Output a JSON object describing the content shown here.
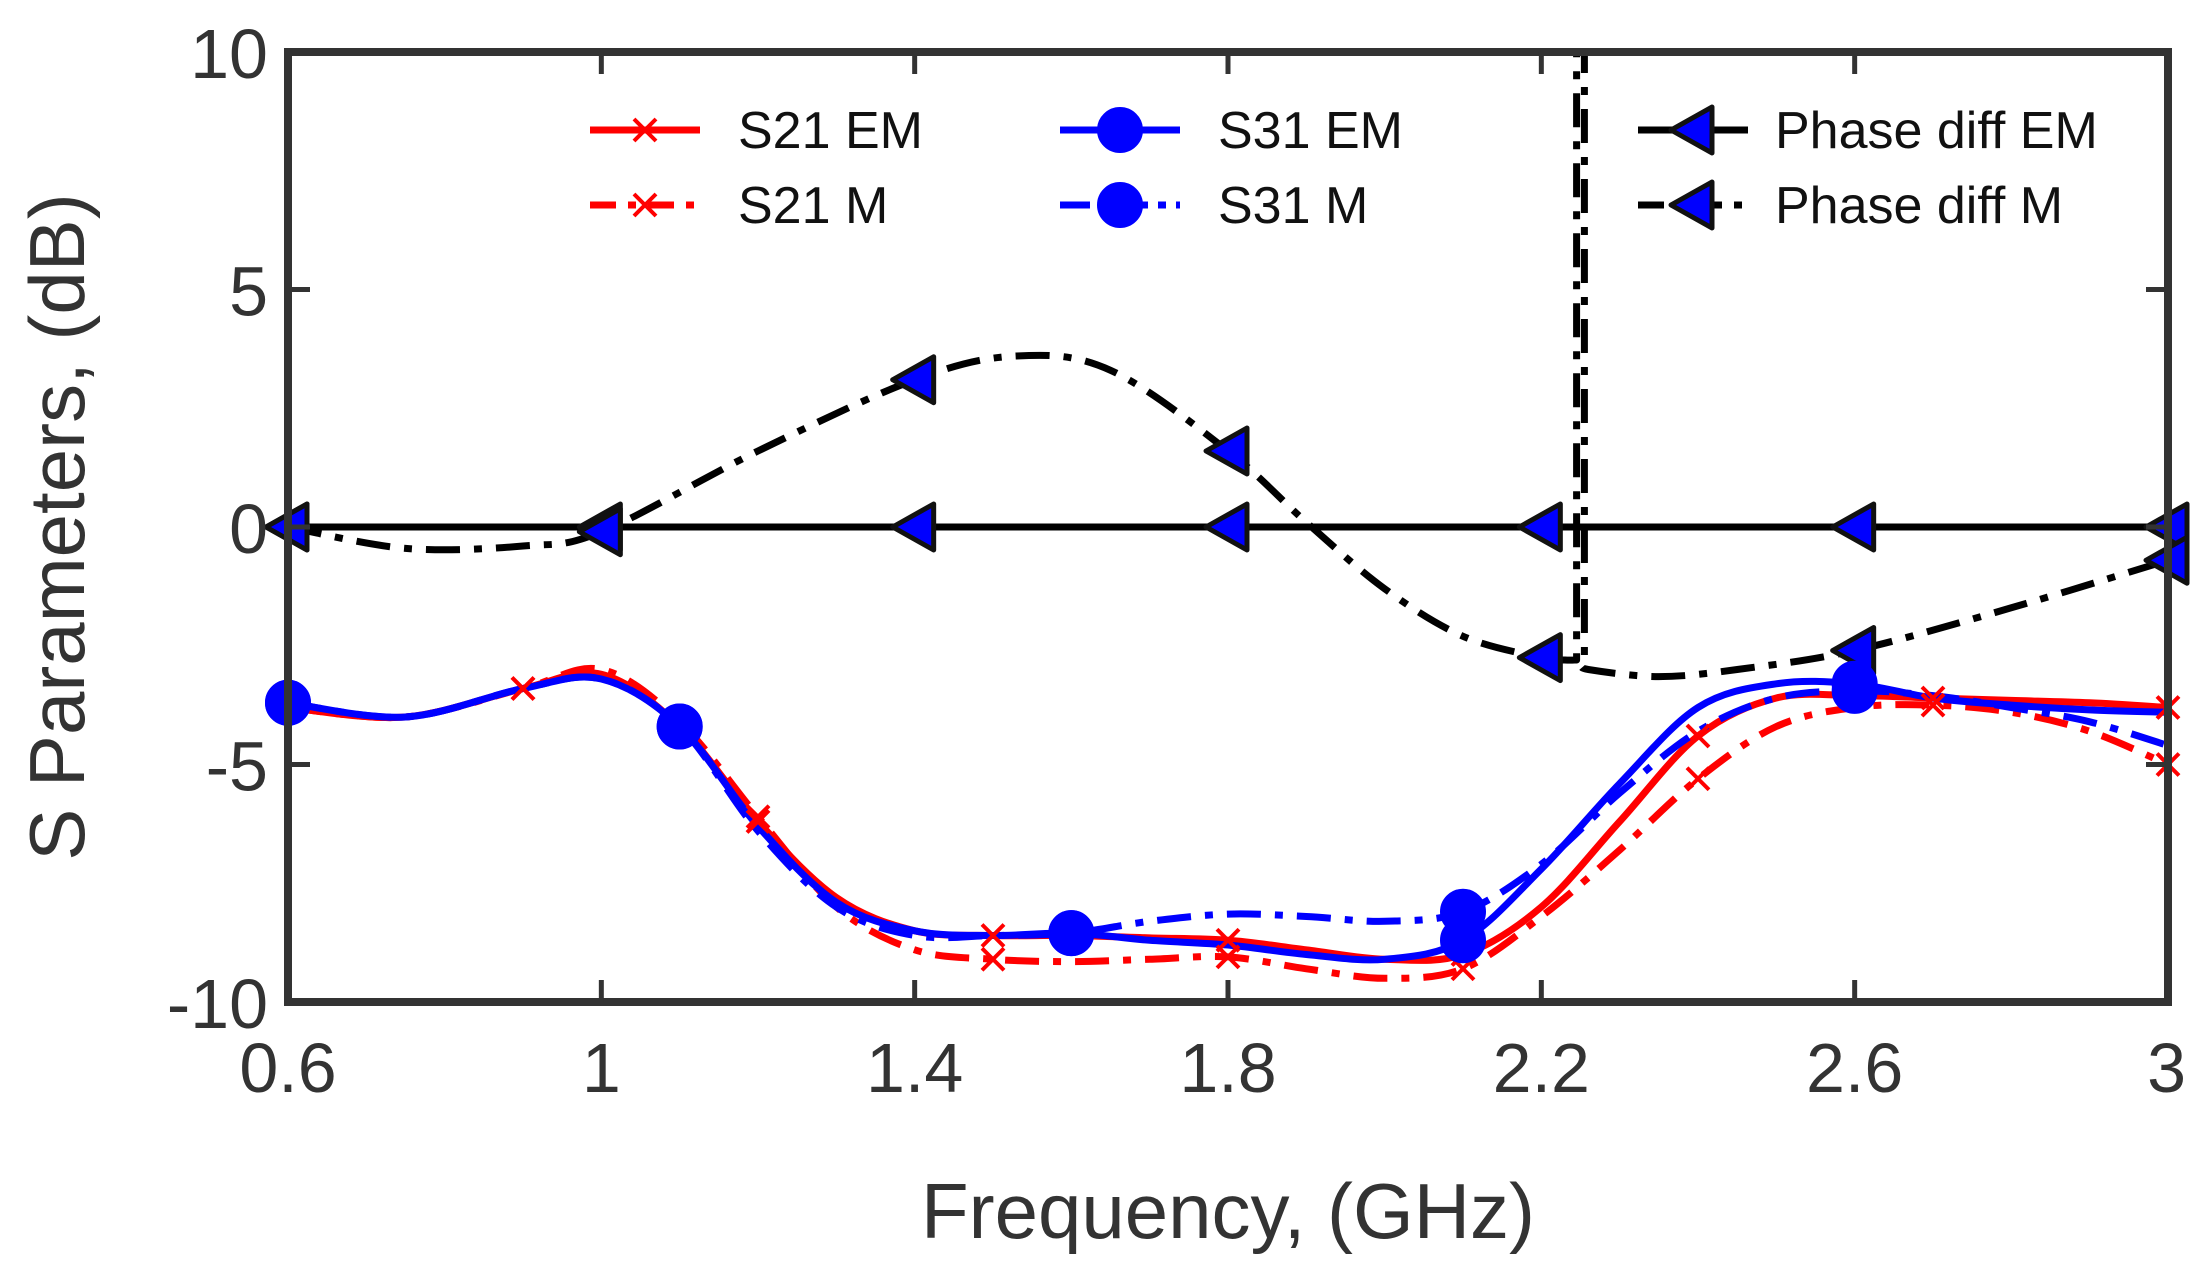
{
  "chart_data": {
    "type": "line",
    "title": "",
    "xlabel": "Frequency, (GHz)",
    "ylabel": "S Parameters, (dB)",
    "xlim": [
      0.6,
      3
    ],
    "ylim": [
      -10,
      10
    ],
    "x_ticks": [
      0.6,
      1,
      1.4,
      1.8,
      2.2,
      2.6,
      3
    ],
    "x_tick_labels": [
      "0.6",
      "1",
      "1.4",
      "1.8",
      "2.2",
      "2.6",
      "3"
    ],
    "y_ticks": [
      -10,
      -5,
      0,
      5,
      10
    ],
    "y_tick_labels": [
      "-10",
      "-5",
      "0",
      "5",
      "10"
    ],
    "grid": false,
    "legend_placement": "top",
    "series": [
      {
        "name": "S21 EM",
        "color": "#ff0000",
        "style": "solid",
        "marker": "x",
        "x": [
          0.6,
          0.75,
          0.9,
          1.0,
          1.1,
          1.2,
          1.3,
          1.4,
          1.5,
          1.6,
          1.7,
          1.8,
          1.9,
          2.0,
          2.1,
          2.2,
          2.3,
          2.4,
          2.5,
          2.6,
          2.7,
          2.8,
          2.9,
          3.0
        ],
        "values": [
          -3.8,
          -4.0,
          -3.4,
          -3.1,
          -4.2,
          -6.2,
          -7.8,
          -8.5,
          -8.6,
          -8.6,
          -8.65,
          -8.7,
          -8.9,
          -9.1,
          -9.0,
          -8.0,
          -6.2,
          -4.4,
          -3.6,
          -3.55,
          -3.6,
          -3.65,
          -3.7,
          -3.8
        ],
        "marker_x": [
          0.9,
          1.2,
          1.5,
          1.8,
          2.1,
          2.4,
          2.7,
          3.0
        ]
      },
      {
        "name": "S21 M",
        "color": "#ff0000",
        "style": "dashdot",
        "marker": "x",
        "x": [
          0.6,
          0.75,
          0.9,
          1.0,
          1.1,
          1.2,
          1.3,
          1.4,
          1.5,
          1.6,
          1.7,
          1.8,
          1.9,
          2.0,
          2.1,
          2.2,
          2.3,
          2.4,
          2.5,
          2.6,
          2.7,
          2.8,
          2.9,
          3.0
        ],
        "values": [
          -3.8,
          -4.0,
          -3.4,
          -3.0,
          -4.1,
          -6.1,
          -8.0,
          -8.9,
          -9.1,
          -9.15,
          -9.1,
          -9.05,
          -9.3,
          -9.5,
          -9.3,
          -8.2,
          -6.8,
          -5.3,
          -4.2,
          -3.8,
          -3.75,
          -3.9,
          -4.3,
          -5.0
        ],
        "marker_x": [
          0.9,
          1.2,
          1.5,
          1.8,
          2.1,
          2.4,
          2.7,
          3.0
        ]
      },
      {
        "name": "S31 EM",
        "color": "#0000ff",
        "style": "solid",
        "marker": "o",
        "x": [
          0.6,
          0.75,
          0.9,
          1.0,
          1.1,
          1.2,
          1.3,
          1.4,
          1.5,
          1.6,
          1.7,
          1.8,
          1.9,
          2.0,
          2.1,
          2.2,
          2.3,
          2.4,
          2.5,
          2.6,
          2.7,
          2.8,
          2.9,
          3.0
        ],
        "values": [
          -3.7,
          -4.0,
          -3.4,
          -3.2,
          -4.2,
          -6.3,
          -7.9,
          -8.5,
          -8.6,
          -8.55,
          -8.7,
          -8.8,
          -9.0,
          -9.1,
          -8.7,
          -7.2,
          -5.4,
          -3.8,
          -3.3,
          -3.3,
          -3.6,
          -3.75,
          -3.85,
          -3.9
        ],
        "marker_x": [
          0.6,
          1.1,
          1.6,
          2.1,
          2.6
        ]
      },
      {
        "name": "S31 M",
        "color": "#0000ff",
        "style": "dashdot",
        "marker": "o",
        "x": [
          0.6,
          0.75,
          0.9,
          1.0,
          1.1,
          1.2,
          1.3,
          1.4,
          1.5,
          1.6,
          1.7,
          1.8,
          1.9,
          2.0,
          2.1,
          2.2,
          2.3,
          2.4,
          2.5,
          2.6,
          2.7,
          2.8,
          2.9,
          3.0
        ],
        "values": [
          -3.7,
          -4.0,
          -3.4,
          -3.2,
          -4.2,
          -6.4,
          -8.0,
          -8.6,
          -8.6,
          -8.55,
          -8.3,
          -8.15,
          -8.2,
          -8.3,
          -8.1,
          -7.1,
          -5.6,
          -4.3,
          -3.6,
          -3.45,
          -3.55,
          -3.8,
          -4.1,
          -4.6
        ],
        "marker_x": [
          0.6,
          1.1,
          1.6,
          2.1,
          2.6
        ]
      },
      {
        "name": "Phase diff EM",
        "color": "#000000",
        "style": "solid",
        "marker": "<",
        "x": [
          0.6,
          1.0,
          1.4,
          1.8,
          2.2,
          2.6,
          3.0
        ],
        "values": [
          0,
          0,
          0,
          0,
          0,
          0,
          0
        ],
        "marker_x": [
          0.6,
          1.0,
          1.4,
          1.8,
          2.2,
          2.6,
          3.0
        ]
      },
      {
        "name": "Phase diff M",
        "color": "#000000",
        "style": "dashdot",
        "marker": "<",
        "x": [
          0.6,
          0.75,
          0.9,
          1.0,
          1.2,
          1.4,
          1.53,
          1.65,
          1.8,
          1.9,
          2.0,
          2.1,
          2.2,
          2.23,
          2.245,
          2.245,
          2.255,
          2.255,
          2.26,
          2.35,
          2.45,
          2.6,
          2.8,
          3.0
        ],
        "values": [
          0,
          -0.45,
          -0.4,
          -0.1,
          1.6,
          3.1,
          3.6,
          3.3,
          1.6,
          0.1,
          -1.3,
          -2.3,
          -2.75,
          -2.8,
          -2.8,
          10,
          10,
          -2.9,
          -3.0,
          -3.15,
          -3.0,
          -2.6,
          -1.7,
          -0.7
        ],
        "marker_x": [
          0.6,
          1.0,
          1.4,
          1.8,
          2.2,
          2.6,
          3.0
        ],
        "marker_values": [
          0,
          -0.1,
          3.1,
          1.6,
          -2.75,
          -2.6,
          -0.7
        ]
      }
    ]
  }
}
